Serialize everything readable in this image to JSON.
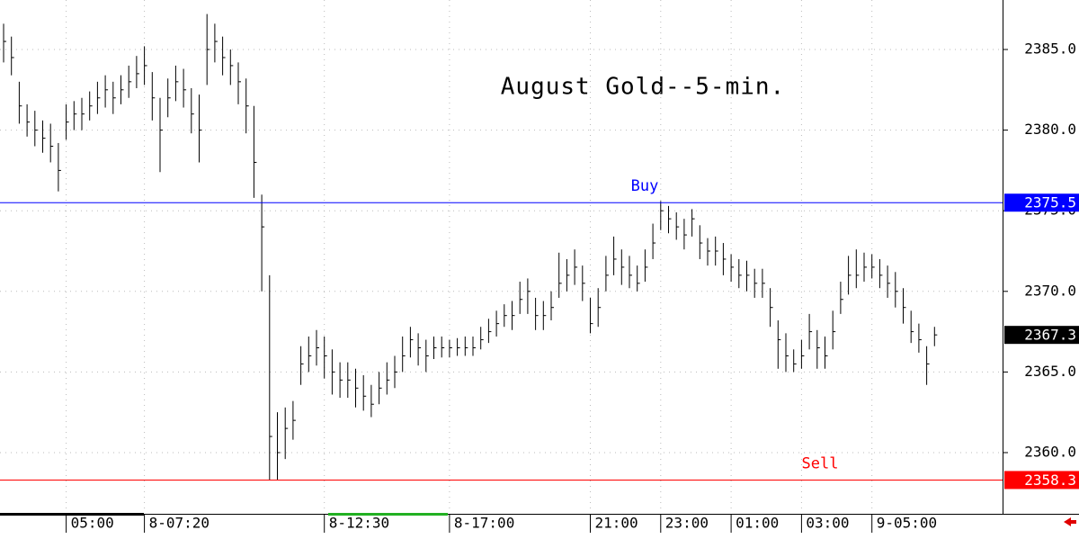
{
  "chart_data": {
    "type": "ohlc",
    "title": "August Gold--5-min.",
    "categories": [
      null,
      null,
      null,
      null,
      null,
      null,
      null,
      null,
      "05:00",
      null,
      null,
      null,
      null,
      null,
      null,
      null,
      null,
      null,
      "8-07:20",
      null,
      null,
      null,
      null,
      null,
      null,
      null,
      null,
      null,
      null,
      null,
      null,
      null,
      null,
      null,
      null,
      null,
      null,
      null,
      null,
      null,
      null,
      "8-12:30",
      null,
      null,
      null,
      null,
      null,
      null,
      null,
      null,
      null,
      null,
      null,
      null,
      null,
      null,
      null,
      "8-17:00",
      null,
      null,
      null,
      null,
      null,
      null,
      null,
      null,
      null,
      null,
      null,
      null,
      null,
      null,
      null,
      null,
      null,
      "21:00",
      null,
      null,
      null,
      null,
      null,
      null,
      null,
      null,
      "23:00",
      null,
      null,
      null,
      null,
      null,
      null,
      null,
      null,
      "01:00",
      null,
      null,
      null,
      null,
      null,
      null,
      null,
      null,
      "03:00",
      null,
      null,
      null,
      null,
      null,
      null,
      null,
      null,
      "9-05:00",
      null,
      null,
      null,
      null,
      null,
      null,
      null,
      null
    ],
    "high": [
      2386.6,
      2385.8,
      2383,
      2381.6,
      2381.2,
      2380.6,
      2380.4,
      2379.2,
      2381.6,
      2381.8,
      2382,
      2382.4,
      2383,
      2383.4,
      2383,
      2383.4,
      2384,
      2384.6,
      2385.2,
      2383.6,
      2382,
      2383.2,
      2384,
      2383.8,
      2382.6,
      2382.2,
      2387.2,
      2386.6,
      2385.8,
      2385,
      2384.2,
      2383.2,
      2381.5,
      2376,
      2371,
      2362.5,
      2362.8,
      2363.2,
      2366.6,
      2367.2,
      2367.6,
      2367.2,
      2366.4,
      2365.6,
      2365.6,
      2365.2,
      2364.8,
      2364.2,
      2365,
      2365.6,
      2366,
      2367.2,
      2367.8,
      2367.4,
      2367,
      2367.2,
      2367.2,
      2367,
      2367.1,
      2367.2,
      2367.2,
      2367.8,
      2368.3,
      2368.8,
      2369.2,
      2369.4,
      2370.6,
      2370.8,
      2369.6,
      2369.4,
      2370,
      2372.4,
      2372,
      2372.6,
      2371.6,
      2369.6,
      2370.2,
      2372.2,
      2373.4,
      2372.6,
      2372.2,
      2371.6,
      2372.6,
      2374.2,
      2375.6,
      2375.3,
      2374.9,
      2374.5,
      2375.1,
      2374.1,
      2373.3,
      2373.4,
      2373,
      2372.3,
      2372,
      2371.9,
      2371.4,
      2371.4,
      2370.2,
      2368.2,
      2367.4,
      2366.4,
      2367,
      2368.6,
      2367.6,
      2367.2,
      2368.8,
      2370.6,
      2372.2,
      2372.6,
      2372.4,
      2372.3,
      2372,
      2371.6,
      2371.2,
      2370.2,
      2368.8,
      2368,
      2366.6,
      2367.8
    ],
    "low": [
      2384.2,
      2383.4,
      2380.4,
      2379.6,
      2379,
      2378.6,
      2378,
      2376.2,
      2379.4,
      2380,
      2380,
      2380.6,
      2381,
      2381.4,
      2381,
      2381.6,
      2382,
      2382.6,
      2382.8,
      2380.6,
      2377.4,
      2380.8,
      2381.8,
      2381.4,
      2379.8,
      2378,
      2382.8,
      2384.2,
      2383.4,
      2382.8,
      2381.6,
      2379.8,
      2375.8,
      2370,
      2358.3,
      2358.3,
      2359.6,
      2360.8,
      2364.2,
      2365,
      2365.4,
      2364.6,
      2363.6,
      2363.4,
      2363.4,
      2362.8,
      2362.6,
      2362.2,
      2363,
      2363.6,
      2364,
      2365,
      2365.9,
      2365.4,
      2365,
      2365.8,
      2365.9,
      2365.9,
      2366,
      2366,
      2366,
      2366.4,
      2366.8,
      2367.2,
      2367.8,
      2367.6,
      2368.6,
      2368.6,
      2367.6,
      2367.6,
      2368.2,
      2369.6,
      2370,
      2370.4,
      2369.4,
      2367.4,
      2367.8,
      2370,
      2371,
      2370.4,
      2370.2,
      2370,
      2370.6,
      2372,
      2373.8,
      2373.6,
      2373.2,
      2372.6,
      2373.4,
      2372,
      2371.6,
      2371.6,
      2371,
      2370.6,
      2370.2,
      2370,
      2369.6,
      2369.6,
      2367.8,
      2365.2,
      2365,
      2365,
      2365.2,
      2366.4,
      2365.2,
      2365.2,
      2366.4,
      2368.6,
      2369.8,
      2370.2,
      2370.6,
      2370.8,
      2370.2,
      2369.6,
      2369,
      2368,
      2366.8,
      2366.2,
      2364.2,
      2366.6
    ],
    "close": [
      2385.5,
      2384.5,
      2381.5,
      2380.5,
      2380,
      2379.5,
      2379,
      2377.5,
      2380.5,
      2381,
      2381,
      2381.5,
      2382,
      2382.5,
      2382,
      2382.5,
      2383,
      2383.5,
      2384,
      2382,
      2380,
      2382,
      2383,
      2382.5,
      2381,
      2380,
      2385,
      2385.5,
      2384.5,
      2384,
      2383,
      2381.5,
      2378,
      2374,
      2361,
      2360,
      2361.5,
      2362,
      2365.5,
      2366,
      2366.5,
      2366,
      2365,
      2364.5,
      2364.5,
      2364,
      2363.5,
      2363,
      2364,
      2364.5,
      2365,
      2366,
      2367,
      2366.5,
      2366,
      2366.5,
      2366.5,
      2366.5,
      2366.5,
      2366.5,
      2366.5,
      2367,
      2367.5,
      2368,
      2368.5,
      2368.5,
      2369.5,
      2370,
      2368.5,
      2368.5,
      2369,
      2370.5,
      2371,
      2371.5,
      2370.5,
      2368,
      2369,
      2371,
      2372,
      2371.5,
      2371,
      2370.5,
      2371.5,
      2373,
      2375,
      2374.5,
      2374,
      2373.5,
      2374.5,
      2373,
      2372.5,
      2372.5,
      2372,
      2371.5,
      2371,
      2371,
      2370.5,
      2370.5,
      2369,
      2367,
      2366,
      2365.5,
      2366,
      2367.5,
      2366.5,
      2366,
      2367.5,
      2369.5,
      2371,
      2371,
      2371.5,
      2371.5,
      2371,
      2370.5,
      2370,
      2369,
      2367.5,
      2367,
      2365.5,
      2367.3
    ],
    "color": "#000000",
    "levels": [
      {
        "label": "Buy",
        "value": 2375.5,
        "color": "#0000ff"
      },
      {
        "label": "Sell",
        "value": 2358.3,
        "color": "#ff0000"
      }
    ],
    "last": 2367.3,
    "last_color": "#000000",
    "ylim": [
      2356.26,
      2388.07
    ],
    "yticks": [
      {
        "value": 2360,
        "label": "2360.0"
      },
      {
        "value": 2365,
        "label": "2365.0"
      },
      {
        "value": 2370,
        "label": "2370.0"
      },
      {
        "value": 2375,
        "label": "2375.0"
      },
      {
        "value": 2380,
        "label": "2380.0"
      },
      {
        "value": 2385,
        "label": "2385.0"
      }
    ],
    "grid": true
  }
}
